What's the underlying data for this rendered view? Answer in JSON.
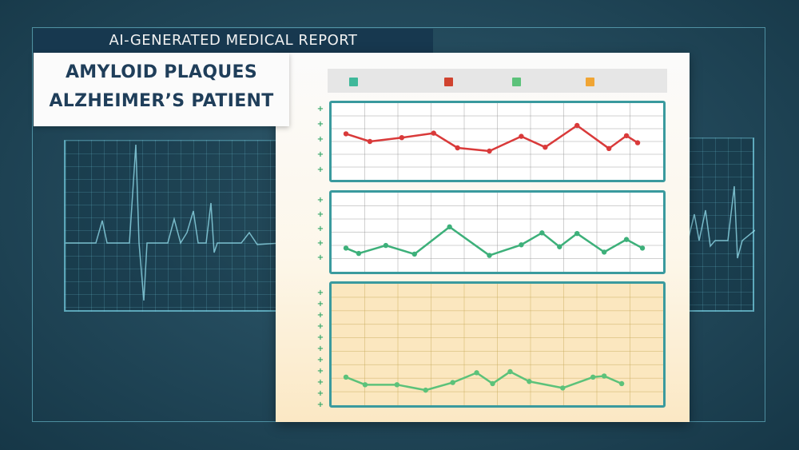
{
  "report": {
    "banner": "AI-GENERATED MEDICAL REPORT",
    "title_line1": "AMYLOID PLAQUES",
    "title_line2": "ALZHEIMER’S PATIENT"
  },
  "colors": {
    "background": "#244b5d",
    "banner_bg": "#17384f",
    "panel_border": "#3a9a9e",
    "red_series": "#d93a3a",
    "green_series": "#3db07a",
    "light_green_series": "#5cc27a",
    "orange_series": "#f0a534",
    "teal_swatch": "#3fb89a",
    "yellow_panel": "#fbe7bf"
  },
  "legend": {
    "swatches": [
      {
        "color": "#3fb89a"
      },
      {
        "color": "#d0432f"
      },
      {
        "color": "#5cc27a"
      },
      {
        "color": "#f0a534"
      }
    ]
  },
  "chart_data": [
    {
      "type": "line",
      "title": "",
      "xlabel": "",
      "ylabel": "",
      "grid": true,
      "ylim": [
        0,
        10
      ],
      "series": [
        {
          "color": "#d93a3a",
          "values": [
            6.2,
            5.0,
            5.6,
            6.3,
            4.0,
            3.5,
            5.8,
            4.1,
            7.5,
            3.9,
            5.9,
            4.8
          ],
          "x": [
            0,
            1.5,
            3.5,
            5.5,
            7,
            9,
            11,
            12.5,
            14.5,
            16.5,
            17.6,
            18.3
          ]
        }
      ]
    },
    {
      "type": "line",
      "title": "",
      "xlabel": "",
      "ylabel": "",
      "grid": true,
      "ylim": [
        0,
        10
      ],
      "series": [
        {
          "color": "#3db07a",
          "values": [
            2.6,
            1.8,
            3.0,
            1.7,
            5.8,
            1.5,
            3.1,
            4.9,
            2.8,
            4.8,
            2.0,
            3.9,
            2.6
          ],
          "x": [
            0,
            0.8,
            2.5,
            4.3,
            6.5,
            9,
            11,
            12.3,
            13.4,
            14.5,
            16.2,
            17.6,
            18.6
          ]
        }
      ]
    },
    {
      "type": "line",
      "title": "",
      "xlabel": "",
      "ylabel": "",
      "grid": true,
      "ylim": [
        0,
        10
      ],
      "series": [
        {
          "color": "#5cc27a",
          "values": [
            2.0,
            1.3,
            1.3,
            0.8,
            1.5,
            2.4,
            1.4,
            2.5,
            1.6,
            1.0,
            2.0,
            2.1,
            1.4
          ],
          "x": [
            0,
            1.2,
            3.2,
            5,
            6.7,
            8.2,
            9.2,
            10.3,
            11.5,
            13.6,
            15.5,
            16.2,
            17.3
          ]
        }
      ]
    }
  ]
}
